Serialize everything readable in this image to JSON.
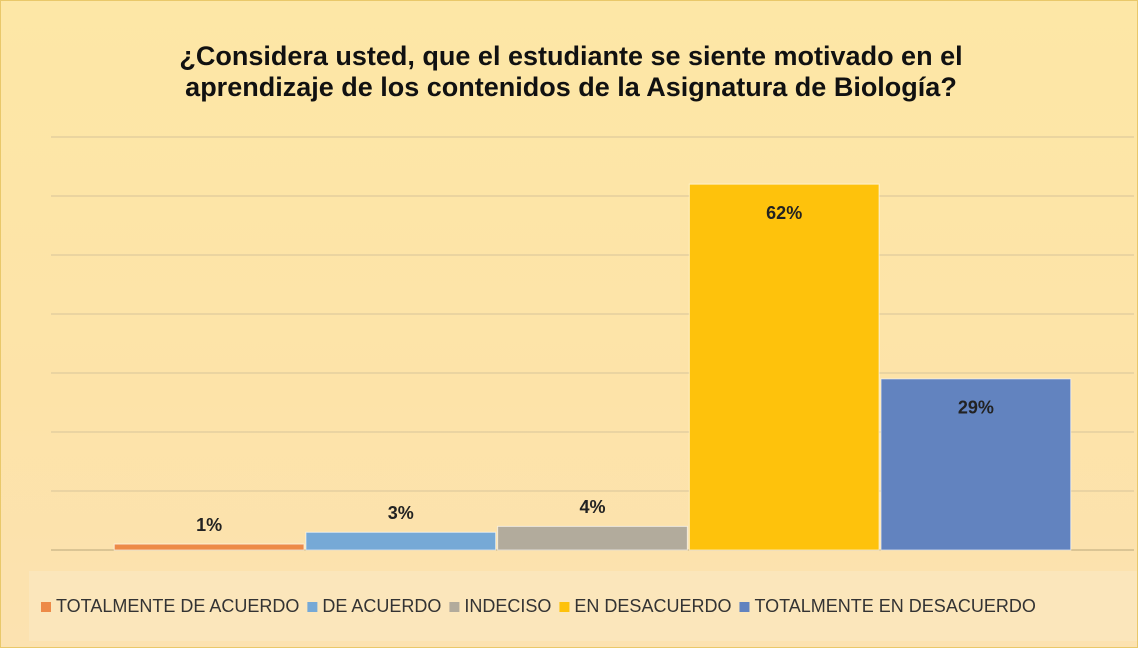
{
  "chart_data": {
    "type": "bar",
    "title": "¿Considera usted, que el estudiante se siente motivado en el aprendizaje de los contenidos de la Asignatura de Biología?",
    "series": [
      {
        "name": "TOTALMENTE DE ACUERDO",
        "color": "#ed8a47",
        "values": [
          1
        ],
        "value_labels": [
          "1%"
        ]
      },
      {
        "name": "DE ACUERDO",
        "color": "#76a9d6",
        "values": [
          3
        ],
        "value_labels": [
          "3%"
        ]
      },
      {
        "name": "INDECISO",
        "color": "#b2ab9c",
        "values": [
          4
        ],
        "value_labels": [
          "4%"
        ]
      },
      {
        "name": "EN DESACUERDO",
        "color": "#fec20c",
        "values": [
          62
        ],
        "value_labels": [
          "62%"
        ]
      },
      {
        "name": "TOTALMENTE EN DESACUERDO",
        "color": "#6283bf",
        "values": [
          29
        ],
        "value_labels": [
          "29%"
        ]
      }
    ],
    "ylim": [
      0,
      70
    ],
    "yticks": [
      0,
      10,
      20,
      30,
      40,
      50,
      60,
      70
    ],
    "grid": true,
    "legend": "bottom"
  }
}
